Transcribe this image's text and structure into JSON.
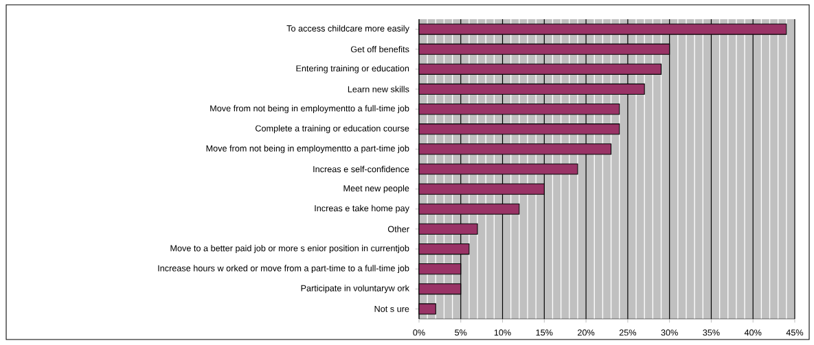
{
  "chart_data": {
    "type": "bar",
    "orientation": "horizontal",
    "categories": [
      "To access childcare more easily",
      "Get off benefits",
      "Entering training or education",
      "Learn new skills",
      "Move from not being in employmentto a full-time job",
      "Complete a training or education course",
      "Move from not being in employmentto a part-time job",
      "Increas e self-confidence",
      "Meet new people",
      "Increas e take home pay",
      "Other",
      "Move to a better paid job or more s enior position in currentjob",
      "Increase hours w orked or move from a part-time to a full-time job",
      "Participate in voluntaryw ork",
      "Not s ure"
    ],
    "values": [
      44,
      30,
      29,
      27,
      24,
      24,
      23,
      19,
      15,
      12,
      7,
      6,
      5,
      5,
      2
    ],
    "color": "#993366",
    "xlim": [
      0,
      45
    ],
    "xticks": [
      {
        "value": 0,
        "label": "0%"
      },
      {
        "value": 5,
        "label": "5%"
      },
      {
        "value": 10,
        "label": "10%"
      },
      {
        "value": 15,
        "label": "15%"
      },
      {
        "value": 20,
        "label": "20%"
      },
      {
        "value": 25,
        "label": "25%"
      },
      {
        "value": 30,
        "label": "30%"
      },
      {
        "value": 35,
        "label": "35%"
      },
      {
        "value": 40,
        "label": "40%"
      },
      {
        "value": 45,
        "label": "45%"
      }
    ],
    "grid": "x"
  }
}
